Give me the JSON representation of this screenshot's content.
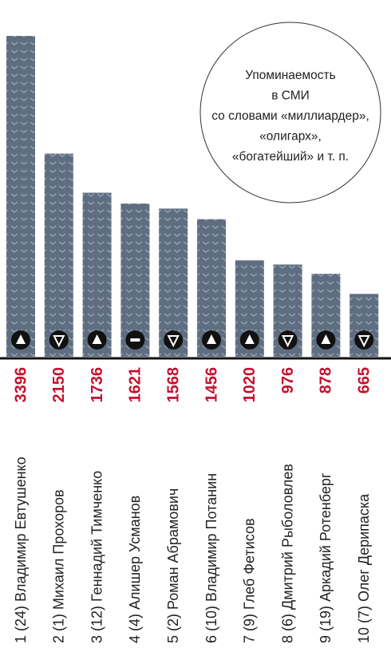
{
  "chart_data": {
    "type": "bar",
    "annotation": [
      "Упоминаемость",
      "в СМИ",
      "со словами «миллиардер»,",
      "«олигарх»,",
      "«богатейший» и т. п."
    ],
    "categories": [
      "1 (24) Владимир Евтушенко",
      "2 (1) Михаил Прохоров",
      "3 (12) Геннадий Тимченко",
      "4 (4) Алишер Усманов",
      "5 (2) Роман Абрамович",
      "6 (10) Владимир Потанин",
      "7 (9) Глеб Фетисов",
      "8 (6) Дмитрий Рыболовлев",
      "9 (19) Аркадий Ротенберг",
      "10 (7) Олег Дерипаска"
    ],
    "values": [
      3396,
      2150,
      1736,
      1621,
      1568,
      1456,
      1020,
      976,
      878,
      665
    ],
    "trends": [
      "up",
      "down",
      "up",
      "flat",
      "down",
      "up",
      "up",
      "down",
      "up",
      "down"
    ],
    "color": "#5f6d80",
    "value_color": "#c8102e"
  }
}
